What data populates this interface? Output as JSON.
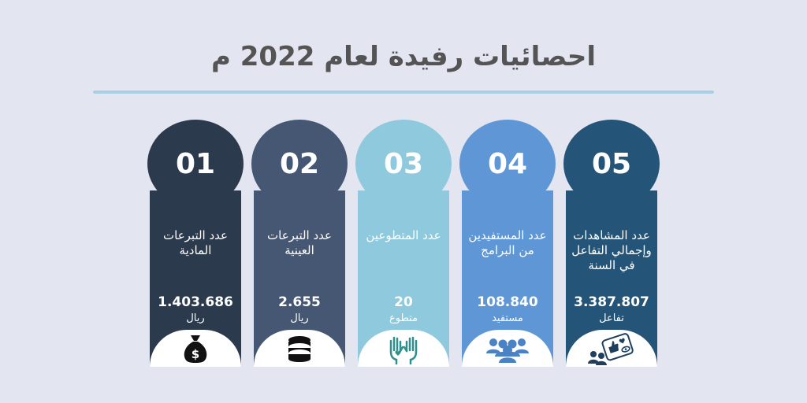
{
  "title": "احصائيات رفيدة لعام 2022 م",
  "cards": [
    {
      "number": "01",
      "label": "عدد التبرعات المادية",
      "value": "1.403.686",
      "unit": "ريال",
      "color": "#2b3a4d",
      "icon": "money-bag-icon"
    },
    {
      "number": "02",
      "label": "عدد التبرعات العينية",
      "value": "2.655",
      "unit": "ريال",
      "color": "#465773",
      "icon": "coin-stack-icon"
    },
    {
      "number": "03",
      "label": "عدد المتطوعين",
      "value": "20",
      "unit": "متطوع",
      "color": "#8ec9dd",
      "icon": "raised-hands-icon"
    },
    {
      "number": "04",
      "label": "عدد المستفيدين من البرامج",
      "value": "108.840",
      "unit": "مستفيد",
      "color": "#5f97d6",
      "icon": "people-group-icon"
    },
    {
      "number": "05",
      "label": "عدد المشاهدات وإجمالي التفاعل في السنة",
      "value": "3.387.807",
      "unit": "تفاعل",
      "color": "#245579",
      "icon": "social-engagement-icon"
    }
  ]
}
